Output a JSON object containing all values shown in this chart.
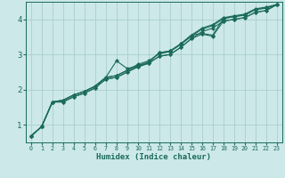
{
  "xlabel": "Humidex (Indice chaleur)",
  "background_color": "#cce8e8",
  "grid_color": "#aacece",
  "line_color": "#1a6b5a",
  "marker_color": "#1a6b5a",
  "xlim": [
    -0.5,
    23.5
  ],
  "ylim": [
    0.5,
    4.5
  ],
  "yticks": [
    1,
    2,
    3,
    4
  ],
  "xticks": [
    0,
    1,
    2,
    3,
    4,
    5,
    6,
    7,
    8,
    9,
    10,
    11,
    12,
    13,
    14,
    15,
    16,
    17,
    18,
    19,
    20,
    21,
    22,
    23
  ],
  "series": [
    [
      0.68,
      0.95,
      1.65,
      1.7,
      1.85,
      1.95,
      2.1,
      2.35,
      2.82,
      2.6,
      2.68,
      2.78,
      3.05,
      3.1,
      3.3,
      3.55,
      3.75,
      3.85,
      4.05,
      4.1,
      4.15,
      4.3,
      4.35,
      4.42
    ],
    [
      0.68,
      0.95,
      1.65,
      1.7,
      1.85,
      1.95,
      2.1,
      2.35,
      2.4,
      2.55,
      2.72,
      2.82,
      3.02,
      3.08,
      3.28,
      3.52,
      3.72,
      3.82,
      4.02,
      4.08,
      4.12,
      4.28,
      4.32,
      4.42
    ],
    [
      0.68,
      0.95,
      1.65,
      1.7,
      1.85,
      1.95,
      2.1,
      2.35,
      2.4,
      2.55,
      2.68,
      2.78,
      3.05,
      3.1,
      3.3,
      3.55,
      3.6,
      3.55,
      4.02,
      4.08,
      4.12,
      4.28,
      4.32,
      4.42
    ],
    [
      0.68,
      0.95,
      1.65,
      1.65,
      1.8,
      1.9,
      2.05,
      2.3,
      2.35,
      2.5,
      2.65,
      2.75,
      2.95,
      3.0,
      3.2,
      3.45,
      3.65,
      3.75,
      3.95,
      4.0,
      4.05,
      4.2,
      4.25,
      4.42
    ],
    [
      0.68,
      0.95,
      1.65,
      1.65,
      1.8,
      1.9,
      2.05,
      2.3,
      2.35,
      2.5,
      2.65,
      2.75,
      2.95,
      3.0,
      3.2,
      3.45,
      3.58,
      3.52,
      3.95,
      4.0,
      4.05,
      4.2,
      4.25,
      4.42
    ]
  ]
}
